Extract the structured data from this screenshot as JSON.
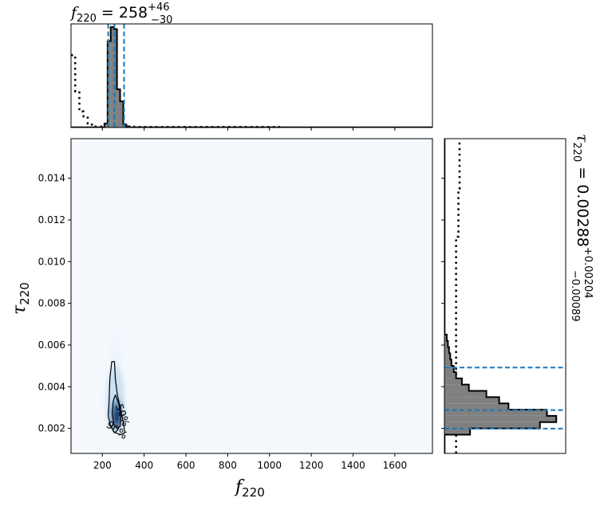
{
  "chart_data": {
    "type": "corner",
    "colors": {
      "density_light": "#f5f9fe",
      "density_dark": "#08306b",
      "hist_fill": "#808080",
      "quantile_line": "#1f77b4",
      "prior": "#000000"
    },
    "joint": {
      "type": "heatmap",
      "xlabel_base": "f",
      "xlabel_sub": "220",
      "ylabel_base": "τ",
      "ylabel_sub": "220",
      "xlim": [
        50,
        1780
      ],
      "ylim": [
        0.0008,
        0.0159
      ],
      "xticks": [
        200,
        400,
        600,
        800,
        1000,
        1200,
        1400,
        1600
      ],
      "yticks": [
        0.002,
        0.004,
        0.006,
        0.008,
        0.01,
        0.012,
        0.014
      ],
      "ytick_labels": [
        "0.002",
        "0.004",
        "0.006",
        "0.008",
        "0.010",
        "0.012",
        "0.014"
      ],
      "contours": [
        {
          "label": "50%",
          "points": [
            [
              262,
              0.0036
            ],
            [
              278,
              0.0032
            ],
            [
              288,
              0.0026
            ],
            [
              285,
              0.0021
            ],
            [
              270,
              0.002
            ],
            [
              255,
              0.0022
            ],
            [
              248,
              0.0027
            ],
            [
              252,
              0.0033
            ]
          ]
        },
        {
          "label": "90%",
          "points": [
            [
              232,
              0.0032
            ],
            [
              236,
              0.0044
            ],
            [
              245,
              0.0052
            ],
            [
              258,
              0.0052
            ],
            [
              262,
              0.0044
            ],
            [
              272,
              0.0036
            ],
            [
              300,
              0.0023
            ],
            [
              308,
              0.0018
            ],
            [
              290,
              0.0017
            ],
            [
              258,
              0.0018
            ],
            [
              240,
              0.0021
            ],
            [
              228,
              0.0026
            ]
          ]
        }
      ],
      "contour_labels": [
        "50%",
        "90%"
      ]
    },
    "top_marginal": {
      "title_base": "f",
      "title_sub": "220",
      "title_value": " = 258",
      "title_plus": "+46",
      "title_minus": "−30",
      "bin_edges": [
        210,
        225,
        240,
        255,
        270,
        285,
        300,
        315,
        330
      ],
      "counts": [
        0.04,
        0.86,
        1.0,
        0.98,
        0.38,
        0.26,
        0.03,
        0.01
      ],
      "quantiles": [
        228,
        258,
        304
      ],
      "prior": [
        [
          50,
          0.72
        ],
        [
          70,
          0.72
        ],
        [
          70,
          0.36
        ],
        [
          90,
          0.36
        ],
        [
          90,
          0.16
        ],
        [
          110,
          0.16
        ],
        [
          110,
          0.11
        ],
        [
          130,
          0.11
        ],
        [
          130,
          0.04
        ],
        [
          150,
          0.04
        ],
        [
          150,
          0.01
        ],
        [
          350,
          0.01
        ],
        [
          350,
          0.005
        ],
        [
          1050,
          0.005
        ]
      ]
    },
    "right_marginal": {
      "title_base": "τ",
      "title_sub": "220",
      "title_value": " = 0.00288",
      "title_plus": "+0.00204",
      "title_minus": "−0.00089",
      "bin_edges": [
        0.0017,
        0.002,
        0.0023,
        0.0026,
        0.0029,
        0.0032,
        0.0035,
        0.0038,
        0.0041,
        0.0044,
        0.0047,
        0.005,
        0.0053,
        0.0056,
        0.0059,
        0.0062,
        0.0065
      ],
      "counts": [
        0.22,
        0.82,
        0.96,
        0.88,
        0.55,
        0.47,
        0.36,
        0.21,
        0.15,
        0.1,
        0.08,
        0.06,
        0.05,
        0.04,
        0.03,
        0.02
      ],
      "quantiles": [
        0.00199,
        0.00288,
        0.00492
      ],
      "prior": [
        [
          0.0008,
          0.1
        ],
        [
          0.0112,
          0.1
        ],
        [
          0.0112,
          0.12
        ],
        [
          0.0135,
          0.12
        ],
        [
          0.0135,
          0.13
        ],
        [
          0.0159,
          0.13
        ]
      ]
    }
  }
}
